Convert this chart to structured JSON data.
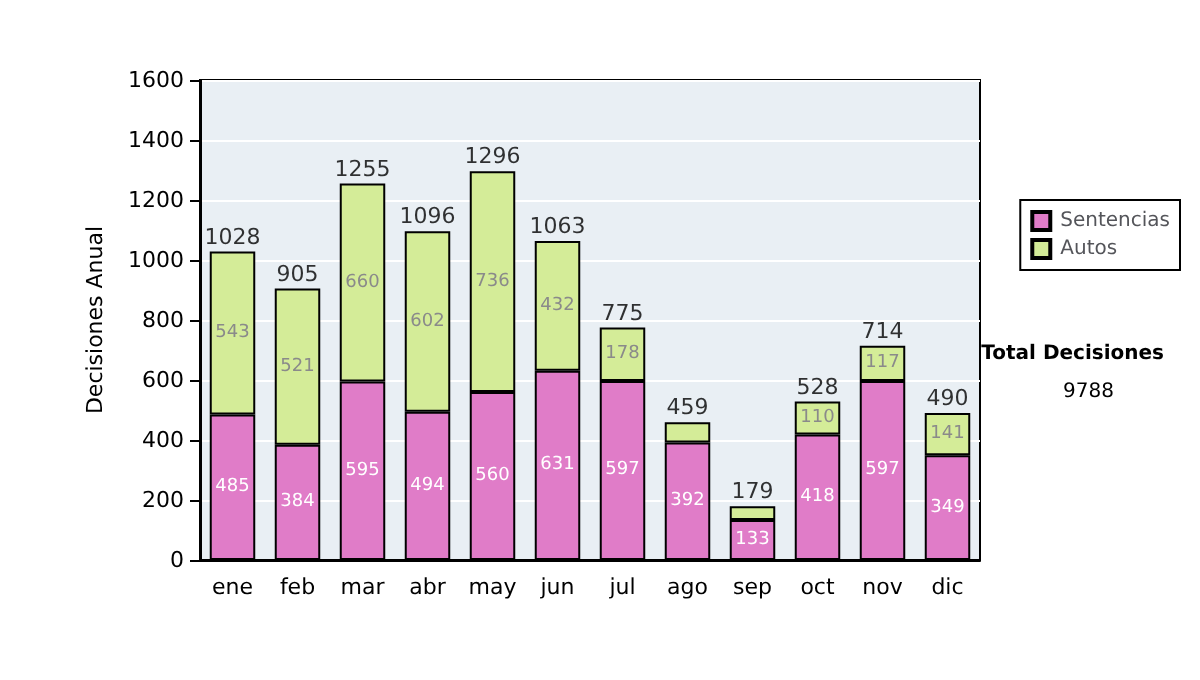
{
  "chart_data": {
    "type": "bar",
    "ylabel": "Decisiones Anual",
    "categories": [
      "ene",
      "feb",
      "mar",
      "abr",
      "may",
      "jun",
      "jul",
      "ago",
      "sep",
      "oct",
      "nov",
      "dic"
    ],
    "series": [
      {
        "name": "Sentencias",
        "color": "#e07cc8",
        "values": [
          485,
          384,
          595,
          494,
          560,
          631,
          597,
          392,
          133,
          418,
          597,
          349
        ],
        "value_labels": [
          "485",
          "384",
          "595",
          "494",
          "560",
          "631",
          "597",
          "392",
          "133",
          "418",
          "597",
          "349"
        ]
      },
      {
        "name": "Autos",
        "color": "#d4ec98",
        "values": [
          543,
          521,
          660,
          602,
          736,
          432,
          178,
          67,
          46,
          110,
          117,
          141
        ],
        "value_labels": [
          "543",
          "521",
          "660",
          "602",
          "736",
          "432",
          "178",
          null,
          null,
          "110",
          "117",
          "141"
        ]
      }
    ],
    "stacked": true,
    "totals": [
      "1028",
      "905",
      "1255",
      "1096",
      "1296",
      "1063",
      "775",
      "459",
      "179",
      "528",
      "714",
      "490"
    ],
    "ylim": [
      0,
      1600
    ],
    "yticks": [
      0,
      200,
      400,
      600,
      800,
      1000,
      1200,
      1400,
      1600
    ],
    "grid": "y",
    "legend": "right",
    "annotations": [
      "Total Decisiones",
      "9788"
    ]
  }
}
